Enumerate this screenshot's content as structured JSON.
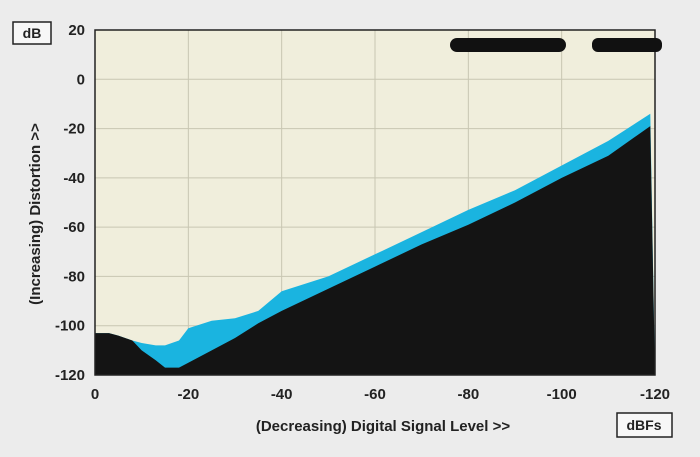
{
  "chart_data": {
    "type": "area",
    "title": "",
    "xlabel": "(Decreasing) Digital Signal Level >>",
    "ylabel": "(Increasing) Distortion >>",
    "x_unit_label": "dBFs",
    "y_unit_label": "dB",
    "xlim": [
      0,
      -120
    ],
    "ylim": [
      -120,
      20
    ],
    "x_ticks": [
      "0",
      "-20",
      "-40",
      "-60",
      "-80",
      "-100",
      "-120"
    ],
    "y_ticks": [
      "20",
      "0",
      "-20",
      "-40",
      "-60",
      "-80",
      "-100",
      "-120"
    ],
    "grid": true,
    "legend": "top-right",
    "legend_entries": [
      "",
      ""
    ],
    "colors": {
      "plot_background": "#f0eedc",
      "grid": "#c8c6b2",
      "upper_band": "#1ab4e0",
      "lower_area": "#141414"
    },
    "series": [
      {
        "values_x": [
          0,
          -3,
          -5,
          -8,
          -10,
          -13,
          -15,
          -18,
          -20,
          -25,
          -30,
          -35,
          -40,
          -50,
          -60,
          -70,
          -80,
          -90,
          -100,
          -110,
          -119
        ],
        "values_y": [
          -103,
          -103,
          -104,
          -106,
          -107,
          -108,
          -108,
          -106,
          -101,
          -98,
          -97,
          -94,
          -86,
          -80,
          -71,
          -62,
          -53,
          -45,
          -35,
          -25,
          -14
        ]
      },
      {
        "values_x": [
          0,
          -3,
          -5,
          -8,
          -10,
          -13,
          -15,
          -18,
          -20,
          -25,
          -30,
          -35,
          -40,
          -50,
          -60,
          -70,
          -80,
          -90,
          -100,
          -110,
          -119
        ],
        "values_y": [
          -103,
          -103,
          -104,
          -106,
          -110,
          -114,
          -117,
          -117,
          -115,
          -110,
          -105,
          -99,
          -94,
          -85,
          -76,
          -67,
          -59,
          -50,
          -40,
          -31,
          -19
        ]
      }
    ]
  }
}
